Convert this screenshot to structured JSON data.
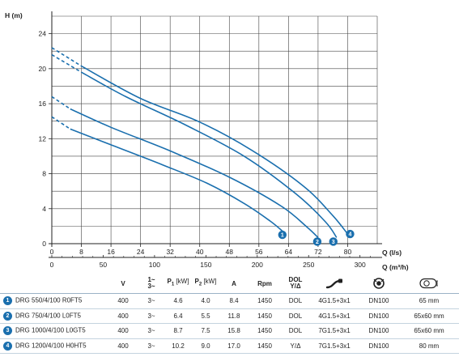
{
  "chart_data": {
    "type": "line",
    "ylabel": "H (m)",
    "xlabel": "Q (l/s)",
    "x2label": "Q (m³/h)",
    "xlim": [
      0,
      88
    ],
    "ylim": [
      0,
      26
    ],
    "x_ticks": [
      "0",
      "8",
      "16",
      "24",
      "32",
      "40",
      "48",
      "56",
      "64",
      "72",
      "80"
    ],
    "x_tick_values": [
      0,
      8,
      16,
      24,
      32,
      40,
      48,
      56,
      64,
      72,
      80
    ],
    "x2_ticks": [
      "0",
      "50",
      "100",
      "150",
      "200",
      "250",
      "300"
    ],
    "x2_tick_values_m3h": [
      0,
      50,
      100,
      150,
      200,
      250,
      300
    ],
    "y_ticks": [
      "0",
      "4",
      "8",
      "12",
      "16",
      "20",
      "24"
    ],
    "y_tick_values": [
      0,
      4,
      8,
      12,
      16,
      20,
      24
    ],
    "grid": true,
    "series": [
      {
        "marker": "1",
        "dashed": [
          [
            0,
            14.5
          ],
          [
            5,
            13.1
          ]
        ],
        "solid": [
          [
            5,
            13.1
          ],
          [
            16,
            11.3
          ],
          [
            30,
            9.0
          ],
          [
            42,
            6.9
          ],
          [
            52,
            4.6
          ],
          [
            59,
            2.6
          ],
          [
            63,
            1.2
          ]
        ]
      },
      {
        "marker": "2",
        "dashed": [
          [
            0,
            16.8
          ],
          [
            5,
            15.4
          ]
        ],
        "solid": [
          [
            5,
            15.4
          ],
          [
            16,
            13.3
          ],
          [
            32,
            10.6
          ],
          [
            48,
            7.6
          ],
          [
            62,
            4.3
          ],
          [
            69,
            1.9
          ],
          [
            72,
            0.7
          ]
        ]
      },
      {
        "marker": "3",
        "dashed": [
          [
            0,
            21.6
          ],
          [
            8,
            19.6
          ]
        ],
        "solid": [
          [
            8,
            19.6
          ],
          [
            20,
            16.8
          ],
          [
            36,
            13.6
          ],
          [
            52,
            10.0
          ],
          [
            66,
            5.7
          ],
          [
            74,
            2.5
          ],
          [
            77,
            0.7
          ]
        ]
      },
      {
        "marker": "4",
        "dashed": [
          [
            0,
            22.4
          ],
          [
            8,
            20.3
          ]
        ],
        "solid": [
          [
            8,
            20.3
          ],
          [
            24,
            16.6
          ],
          [
            40,
            13.9
          ],
          [
            54,
            10.7
          ],
          [
            68,
            6.6
          ],
          [
            76,
            3.2
          ],
          [
            80,
            1.1
          ]
        ]
      }
    ],
    "marker_points": [
      [
        63,
        1.2
      ],
      [
        72,
        0.7
      ],
      [
        77,
        0.7
      ],
      [
        80,
        1.1
      ]
    ],
    "colors": {
      "curve": "#1a6fae",
      "grid": "#444444",
      "axis": "#222222",
      "marker_bg": "#1a6fae"
    }
  },
  "table": {
    "headers": {
      "v": "V",
      "phase_top": "1~",
      "phase_bottom": "3~",
      "p1": "P",
      "p1_sub": "1",
      "p1_unit": " [kW]",
      "p2": "P",
      "p2_sub": "2",
      "p2_unit": " [kW]",
      "a": "A",
      "rpm": "Rpm",
      "dol_top": "DOL",
      "dol_bottom": "Y/Δ"
    },
    "header_icons": [
      "cable-icon",
      "flange-icon",
      "free-passage-icon"
    ],
    "rows": [
      {
        "num": "1",
        "model": "DRG 550/4/100 R0FT5",
        "v": "400",
        "phase": "3~",
        "p1": "4.6",
        "p2": "4.0",
        "a": "8.4",
        "rpm": "1450",
        "start": "DOL",
        "cable": "4G1.5+3x1",
        "outlet": "DN100",
        "passage": "65 mm"
      },
      {
        "num": "2",
        "model": "DRG 750/4/100 L0FT5",
        "v": "400",
        "phase": "3~",
        "p1": "6.4",
        "p2": "5.5",
        "a": "11.8",
        "rpm": "1450",
        "start": "DOL",
        "cable": "4G1.5+3x1",
        "outlet": "DN100",
        "passage": "65x60 mm"
      },
      {
        "num": "3",
        "model": "DRG 1000/4/100 L0GT5",
        "v": "400",
        "phase": "3~",
        "p1": "8.7",
        "p2": "7.5",
        "a": "15.8",
        "rpm": "1450",
        "start": "DOL",
        "cable": "7G1.5+3x1",
        "outlet": "DN100",
        "passage": "65x60 mm"
      },
      {
        "num": "4",
        "model": "DRG 1200/4/100 H0HT5",
        "v": "400",
        "phase": "3~",
        "p1": "10.2",
        "p2": "9.0",
        "a": "17.0",
        "rpm": "1450",
        "start": "Y/Δ",
        "cable": "7G1.5+3x1",
        "outlet": "DN100",
        "passage": "80 mm"
      }
    ]
  }
}
